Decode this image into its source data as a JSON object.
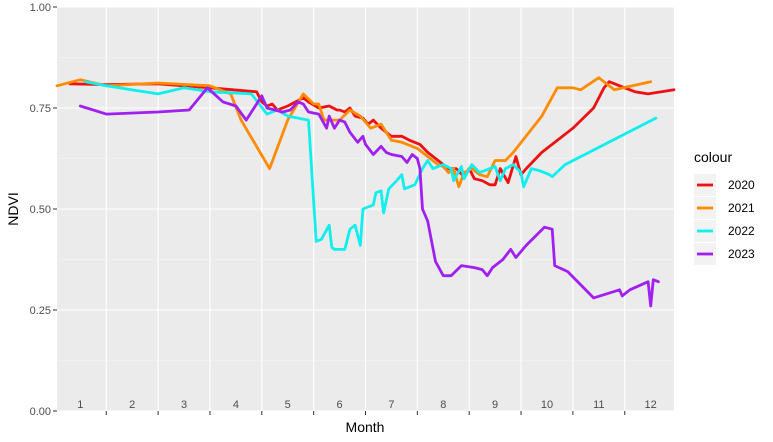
{
  "chart_data": {
    "type": "line",
    "title": "",
    "xlabel": "Month",
    "ylabel": "NDVI",
    "ylim": [
      0,
      1
    ],
    "xlim": [
      0.55,
      12.45
    ],
    "y_ticks": [
      "0.00",
      "0.25",
      "0.50",
      "0.75",
      "1.00"
    ],
    "y_tick_values": [
      0,
      0.25,
      0.5,
      0.75,
      1.0
    ],
    "x_ticks": [
      "1",
      "2",
      "3",
      "4",
      "5",
      "6",
      "7",
      "8",
      "9",
      "10",
      "11",
      "12"
    ],
    "x_tick_values": [
      1,
      2,
      3,
      4,
      5,
      6,
      7,
      8,
      9,
      10,
      11,
      12
    ],
    "month_boundaries": [
      1.5,
      2.5,
      3.5,
      4.5,
      5.5,
      6.5,
      7.5,
      8.5,
      9.5,
      10.5,
      11.5
    ],
    "grid": true,
    "legend": {
      "title": "colour",
      "position": "right"
    },
    "series": [
      {
        "name": "2020",
        "color": "#ee1111",
        "points": [
          [
            0.8,
            0.81
          ],
          [
            1.5,
            0.808
          ],
          [
            2.5,
            0.81
          ],
          [
            3.5,
            0.8
          ],
          [
            4.4,
            0.79
          ],
          [
            4.5,
            0.765
          ],
          [
            4.6,
            0.755
          ],
          [
            4.7,
            0.76
          ],
          [
            4.8,
            0.745
          ],
          [
            5.0,
            0.755
          ],
          [
            5.3,
            0.775
          ],
          [
            5.4,
            0.765
          ],
          [
            5.6,
            0.75
          ],
          [
            5.8,
            0.755
          ],
          [
            5.95,
            0.745
          ],
          [
            6.0,
            0.745
          ],
          [
            6.1,
            0.74
          ],
          [
            6.2,
            0.75
          ],
          [
            6.3,
            0.73
          ],
          [
            6.45,
            0.725
          ],
          [
            6.55,
            0.71
          ],
          [
            6.65,
            0.72
          ],
          [
            6.8,
            0.7
          ],
          [
            7.0,
            0.68
          ],
          [
            7.2,
            0.68
          ],
          [
            7.35,
            0.67
          ],
          [
            7.55,
            0.66
          ],
          [
            7.7,
            0.64
          ],
          [
            7.9,
            0.62
          ],
          [
            8.0,
            0.61
          ],
          [
            8.1,
            0.6
          ],
          [
            8.25,
            0.6
          ],
          [
            8.4,
            0.58
          ],
          [
            8.5,
            0.6
          ],
          [
            8.6,
            0.575
          ],
          [
            8.75,
            0.57
          ],
          [
            8.9,
            0.56
          ],
          [
            9.0,
            0.56
          ],
          [
            9.1,
            0.6
          ],
          [
            9.25,
            0.565
          ],
          [
            9.4,
            0.63
          ],
          [
            9.5,
            0.585
          ],
          [
            9.6,
            0.6
          ],
          [
            9.9,
            0.64
          ],
          [
            10.5,
            0.7
          ],
          [
            10.9,
            0.75
          ],
          [
            11.1,
            0.8
          ],
          [
            11.2,
            0.815
          ],
          [
            11.5,
            0.8
          ],
          [
            11.7,
            0.79
          ],
          [
            11.95,
            0.785
          ],
          [
            12.45,
            0.795
          ]
        ]
      },
      {
        "name": "2021",
        "color": "#ff8c00",
        "points": [
          [
            0.55,
            0.805
          ],
          [
            1.0,
            0.82
          ],
          [
            1.5,
            0.805
          ],
          [
            2.5,
            0.812
          ],
          [
            3.5,
            0.805
          ],
          [
            3.9,
            0.785
          ],
          [
            4.1,
            0.72
          ],
          [
            4.65,
            0.6
          ],
          [
            5.0,
            0.72
          ],
          [
            5.3,
            0.785
          ],
          [
            5.5,
            0.76
          ],
          [
            5.6,
            0.76
          ],
          [
            5.7,
            0.72
          ],
          [
            6.0,
            0.72
          ],
          [
            6.2,
            0.745
          ],
          [
            6.4,
            0.73
          ],
          [
            6.6,
            0.7
          ],
          [
            6.8,
            0.71
          ],
          [
            7.0,
            0.67
          ],
          [
            7.2,
            0.665
          ],
          [
            7.5,
            0.65
          ],
          [
            7.9,
            0.61
          ],
          [
            8.0,
            0.605
          ],
          [
            8.1,
            0.59
          ],
          [
            8.2,
            0.6
          ],
          [
            8.3,
            0.555
          ],
          [
            8.4,
            0.59
          ],
          [
            8.55,
            0.6
          ],
          [
            8.7,
            0.585
          ],
          [
            8.85,
            0.58
          ],
          [
            9.0,
            0.62
          ],
          [
            9.2,
            0.62
          ],
          [
            9.35,
            0.64
          ],
          [
            9.9,
            0.73
          ],
          [
            10.2,
            0.8
          ],
          [
            10.5,
            0.8
          ],
          [
            10.65,
            0.795
          ],
          [
            11.0,
            0.825
          ],
          [
            11.3,
            0.795
          ],
          [
            12.0,
            0.815
          ]
        ]
      },
      {
        "name": "2022",
        "color": "#11eeee",
        "points": [
          [
            1.1,
            0.815
          ],
          [
            1.5,
            0.805
          ],
          [
            2.5,
            0.785
          ],
          [
            3.0,
            0.8
          ],
          [
            3.5,
            0.79
          ],
          [
            4.3,
            0.785
          ],
          [
            4.6,
            0.735
          ],
          [
            4.8,
            0.745
          ],
          [
            5.0,
            0.73
          ],
          [
            5.4,
            0.72
          ],
          [
            5.55,
            0.42
          ],
          [
            5.65,
            0.425
          ],
          [
            5.8,
            0.46
          ],
          [
            5.85,
            0.405
          ],
          [
            5.9,
            0.4
          ],
          [
            6.1,
            0.4
          ],
          [
            6.2,
            0.45
          ],
          [
            6.3,
            0.46
          ],
          [
            6.4,
            0.41
          ],
          [
            6.45,
            0.5
          ],
          [
            6.65,
            0.51
          ],
          [
            6.7,
            0.54
          ],
          [
            6.8,
            0.545
          ],
          [
            6.85,
            0.49
          ],
          [
            6.95,
            0.55
          ],
          [
            7.1,
            0.57
          ],
          [
            7.2,
            0.585
          ],
          [
            7.25,
            0.55
          ],
          [
            7.45,
            0.56
          ],
          [
            7.6,
            0.6
          ],
          [
            7.7,
            0.62
          ],
          [
            7.8,
            0.6
          ],
          [
            7.9,
            0.605
          ],
          [
            8.0,
            0.61
          ],
          [
            8.15,
            0.6
          ],
          [
            8.2,
            0.57
          ],
          [
            8.35,
            0.605
          ],
          [
            8.4,
            0.575
          ],
          [
            8.55,
            0.61
          ],
          [
            8.7,
            0.59
          ],
          [
            9.0,
            0.605
          ],
          [
            9.1,
            0.57
          ],
          [
            9.2,
            0.6
          ],
          [
            9.35,
            0.61
          ],
          [
            9.5,
            0.59
          ],
          [
            9.55,
            0.555
          ],
          [
            9.7,
            0.6
          ],
          [
            9.85,
            0.595
          ],
          [
            10.05,
            0.585
          ],
          [
            10.1,
            0.58
          ],
          [
            10.35,
            0.61
          ],
          [
            12.1,
            0.725
          ]
        ]
      },
      {
        "name": "2023",
        "color": "#a020f0",
        "points": [
          [
            1.0,
            0.755
          ],
          [
            1.5,
            0.735
          ],
          [
            2.5,
            0.74
          ],
          [
            3.1,
            0.745
          ],
          [
            3.45,
            0.8
          ],
          [
            3.75,
            0.765
          ],
          [
            4.0,
            0.755
          ],
          [
            4.2,
            0.72
          ],
          [
            4.5,
            0.78
          ],
          [
            4.6,
            0.75
          ],
          [
            4.75,
            0.745
          ],
          [
            4.9,
            0.74
          ],
          [
            5.05,
            0.745
          ],
          [
            5.2,
            0.765
          ],
          [
            5.3,
            0.76
          ],
          [
            5.4,
            0.74
          ],
          [
            5.6,
            0.735
          ],
          [
            5.75,
            0.7
          ],
          [
            5.8,
            0.73
          ],
          [
            5.9,
            0.7
          ],
          [
            6.0,
            0.72
          ],
          [
            6.1,
            0.715
          ],
          [
            6.2,
            0.69
          ],
          [
            6.35,
            0.665
          ],
          [
            6.45,
            0.68
          ],
          [
            6.5,
            0.66
          ],
          [
            6.65,
            0.635
          ],
          [
            6.8,
            0.655
          ],
          [
            6.9,
            0.64
          ],
          [
            7.0,
            0.635
          ],
          [
            7.2,
            0.63
          ],
          [
            7.3,
            0.615
          ],
          [
            7.4,
            0.635
          ],
          [
            7.5,
            0.625
          ],
          [
            7.55,
            0.6
          ],
          [
            7.6,
            0.5
          ],
          [
            7.7,
            0.47
          ],
          [
            7.85,
            0.37
          ],
          [
            8.0,
            0.335
          ],
          [
            8.15,
            0.335
          ],
          [
            8.35,
            0.36
          ],
          [
            8.6,
            0.355
          ],
          [
            8.75,
            0.35
          ],
          [
            8.85,
            0.335
          ],
          [
            8.95,
            0.355
          ],
          [
            9.15,
            0.375
          ],
          [
            9.3,
            0.4
          ],
          [
            9.4,
            0.38
          ],
          [
            9.6,
            0.41
          ],
          [
            9.95,
            0.455
          ],
          [
            10.1,
            0.45
          ],
          [
            10.15,
            0.36
          ],
          [
            10.4,
            0.345
          ],
          [
            10.9,
            0.28
          ],
          [
            11.4,
            0.3
          ],
          [
            11.45,
            0.285
          ],
          [
            11.6,
            0.3
          ],
          [
            11.95,
            0.32
          ],
          [
            12.0,
            0.26
          ],
          [
            12.05,
            0.325
          ],
          [
            12.15,
            0.32
          ]
        ]
      }
    ]
  }
}
